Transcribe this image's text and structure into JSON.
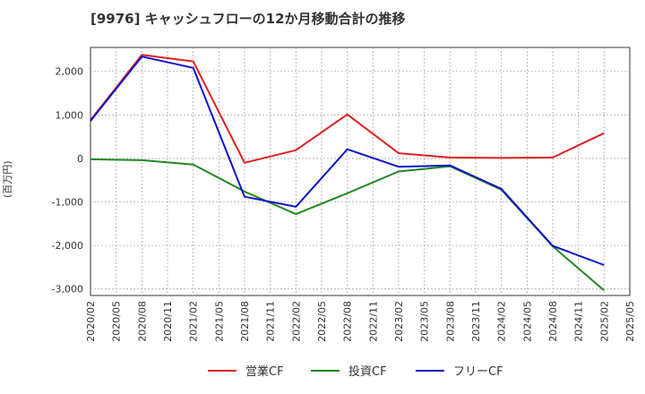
{
  "chart_data": {
    "type": "line",
    "title": "[9976]  キャッシュフローの12か月移動合計の推移",
    "ylabel": "(百万円)",
    "xlabel": "",
    "ylim": [
      -3150,
      2550
    ],
    "yticks": [
      {
        "value": 2000,
        "label": "2,000"
      },
      {
        "value": 1000,
        "label": "1,000"
      },
      {
        "value": 0,
        "label": "0"
      },
      {
        "value": -1000,
        "label": "-1,000"
      },
      {
        "value": -2000,
        "label": "-2,000"
      },
      {
        "value": -3000,
        "label": "-3,000"
      }
    ],
    "x_categories": [
      "2020/02",
      "2020/05",
      "2020/08",
      "2020/11",
      "2021/02",
      "2021/05",
      "2021/08",
      "2021/11",
      "2022/02",
      "2022/05",
      "2022/08",
      "2022/11",
      "2023/02",
      "2023/05",
      "2023/08",
      "2023/11",
      "2024/02",
      "2024/05",
      "2024/08",
      "2024/11",
      "2025/02",
      "2025/05"
    ],
    "series": [
      {
        "name": "営業CF",
        "color": "#dd2222",
        "points": [
          [
            "2020/02",
            880
          ],
          [
            "2020/08",
            2380
          ],
          [
            "2021/02",
            2230
          ],
          [
            "2021/08",
            -100
          ],
          [
            "2022/02",
            190
          ],
          [
            "2022/08",
            1010
          ],
          [
            "2023/02",
            120
          ],
          [
            "2023/08",
            20
          ],
          [
            "2024/02",
            10
          ],
          [
            "2024/08",
            20
          ],
          [
            "2025/02",
            580
          ]
        ]
      },
      {
        "name": "投資CF",
        "color": "#228822",
        "points": [
          [
            "2020/02",
            -20
          ],
          [
            "2020/08",
            -40
          ],
          [
            "2021/02",
            -140
          ],
          [
            "2021/08",
            -760
          ],
          [
            "2022/02",
            -1280
          ],
          [
            "2022/08",
            -800
          ],
          [
            "2023/02",
            -300
          ],
          [
            "2023/08",
            -180
          ],
          [
            "2024/02",
            -720
          ],
          [
            "2024/08",
            -2020
          ],
          [
            "2025/02",
            -3030
          ]
        ]
      },
      {
        "name": "フリーCF",
        "color": "#1111cc",
        "points": [
          [
            "2020/02",
            860
          ],
          [
            "2020/08",
            2340
          ],
          [
            "2021/02",
            2080
          ],
          [
            "2021/08",
            -880
          ],
          [
            "2022/02",
            -1110
          ],
          [
            "2022/08",
            210
          ],
          [
            "2023/02",
            -190
          ],
          [
            "2023/08",
            -160
          ],
          [
            "2024/02",
            -700
          ],
          [
            "2024/08",
            -2010
          ],
          [
            "2025/02",
            -2450
          ]
        ]
      }
    ],
    "legend": "bottom-center",
    "grid": true
  }
}
